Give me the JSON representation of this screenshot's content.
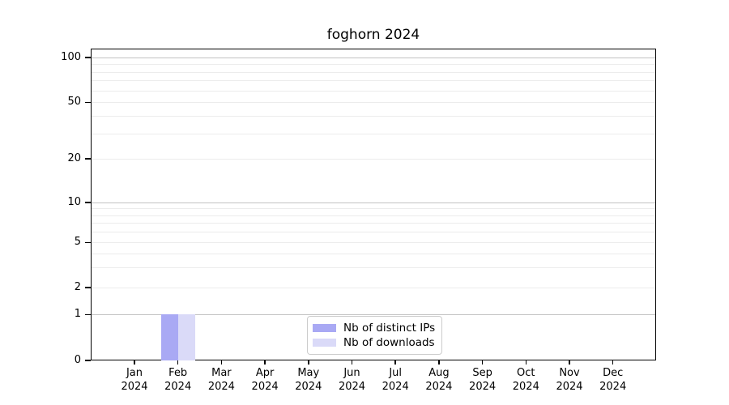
{
  "chart_data": {
    "type": "bar",
    "title": "foghorn 2024",
    "x_categories": [
      "Jan",
      "Feb",
      "Mar",
      "Apr",
      "May",
      "Jun",
      "Jul",
      "Aug",
      "Sep",
      "Oct",
      "Nov",
      "Dec"
    ],
    "x_year_label": "2024",
    "series": [
      {
        "name": "Nb of distinct IPs",
        "color": "#a9a9f4",
        "values": [
          0,
          1,
          0,
          0,
          0,
          0,
          0,
          0,
          0,
          0,
          0,
          0
        ]
      },
      {
        "name": "Nb of downloads",
        "color": "#dadaf8",
        "values": [
          0,
          1,
          0,
          0,
          0,
          0,
          0,
          0,
          0,
          0,
          0,
          0
        ]
      }
    ],
    "yscale": "log",
    "ylim": [
      0,
      100
    ],
    "y_ticks": [
      100,
      50,
      20,
      10,
      5,
      2,
      1,
      0
    ],
    "y_minor_gridlines": [
      90,
      80,
      70,
      60,
      40,
      30,
      9,
      8,
      7,
      6,
      4,
      3
    ],
    "y_major_gridline_values": [
      100,
      10,
      1
    ],
    "grid": true,
    "legend_position": "inside bottom center",
    "colors": {
      "axis": "#000000",
      "major_grid": "#c3c3c3",
      "minor_grid": "#ececec",
      "background": "#ffffff"
    }
  }
}
